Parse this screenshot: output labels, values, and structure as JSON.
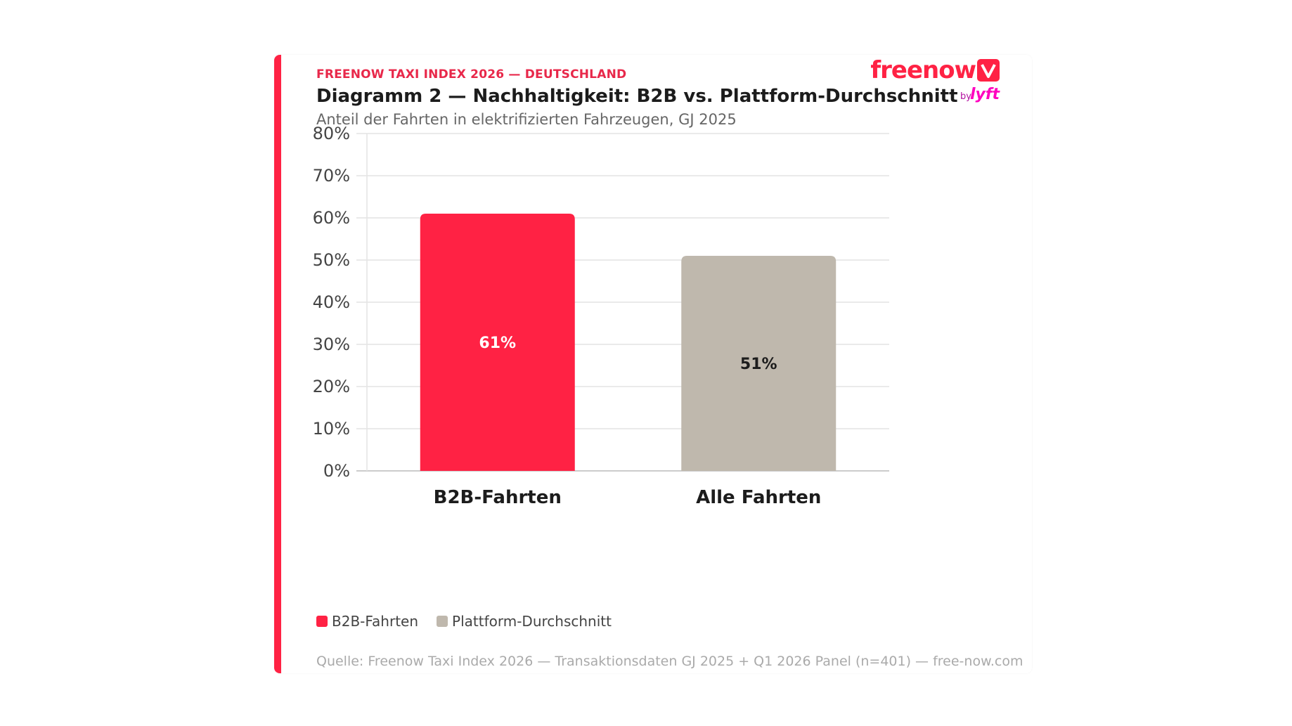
{
  "header": {
    "eyebrow": "FREENOW TAXI INDEX 2026 — DEUTSCHLAND",
    "title": "Diagramm 2 — Nachhaltigkeit: B2B vs. Plattform-Durchschnitt",
    "subtitle": "Anteil der Fahrten in elektrifizierten Fahrzeugen, GJ 2025"
  },
  "logo": {
    "word": "freenow",
    "by": "by",
    "lyft": "lyft",
    "icon": "freenow-logo-mark-icon"
  },
  "chart_data": {
    "type": "bar",
    "categories": [
      "B2B-Fahrten",
      "Alle Fahrten"
    ],
    "values": [
      61,
      51
    ],
    "data_labels": [
      "61%",
      "51%"
    ],
    "ylim": [
      0,
      80
    ],
    "yticks": [
      0,
      10,
      20,
      30,
      40,
      50,
      60,
      70,
      80
    ],
    "ytick_labels": [
      "0%",
      "10%",
      "20%",
      "30%",
      "40%",
      "50%",
      "60%",
      "70%",
      "80%"
    ],
    "grid": true,
    "bar_colors": [
      "#ff2244",
      "#bfb8ad"
    ],
    "label_colors": [
      "#ffffff",
      "#1c1c1c"
    ],
    "legend": {
      "placement": "bottom-left",
      "entries": [
        {
          "name": "B2B-Fahrten",
          "color": "#ff2244"
        },
        {
          "name": "Plattform-Durchschnitt",
          "color": "#bfb8ad"
        }
      ]
    },
    "title": "Diagramm 2 — Nachhaltigkeit: B2B vs. Plattform-Durchschnitt"
  },
  "footer": {
    "source": "Quelle: Freenow Taxi Index 2026 — Transaktionsdaten GJ 2025 + Q1 2026 Panel (n=401) — free-now.com"
  },
  "colors": {
    "accent": "#ff2244",
    "grid": "#e4e4e4",
    "axis": "#cccccc"
  }
}
